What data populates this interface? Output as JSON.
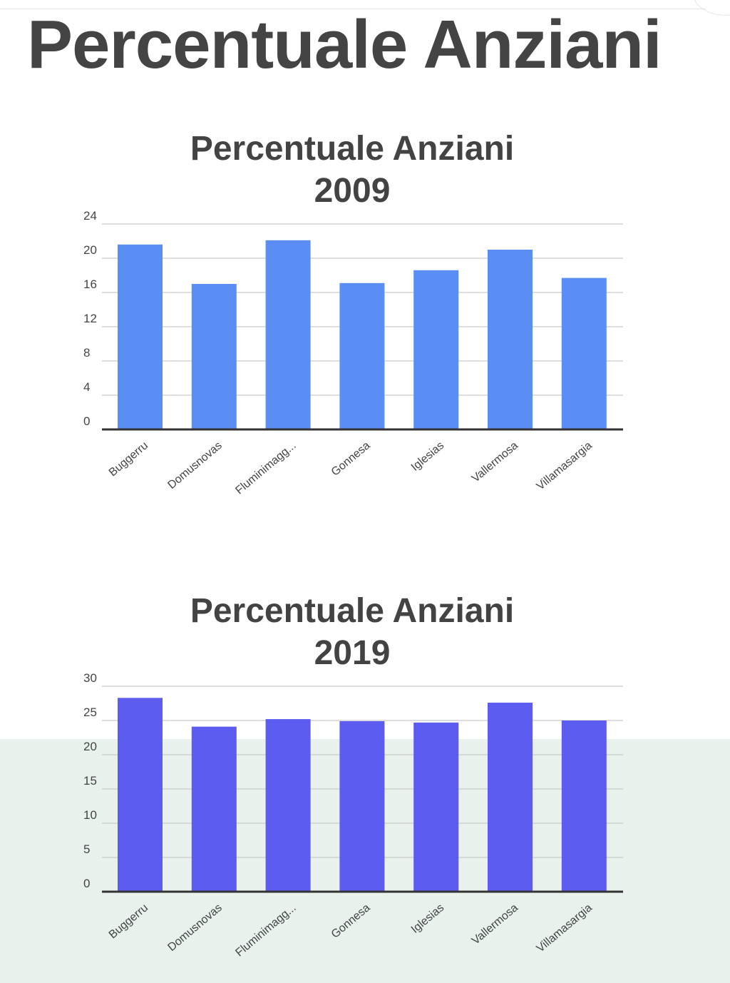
{
  "page": {
    "title": "Percentuale Anziani"
  },
  "chart_data": [
    {
      "type": "bar",
      "title_lines": [
        "Percentuale Anziani",
        "2009"
      ],
      "categories": [
        "Buggerru",
        "Domusnovas",
        "Fluminimagg...",
        "Gonnesa",
        "Iglesias",
        "Vallermosa",
        "Villamasargia"
      ],
      "values": [
        21.6,
        17.0,
        22.1,
        17.1,
        18.6,
        21.0,
        17.7
      ],
      "ylim": [
        0,
        24
      ],
      "yticks": [
        0,
        4,
        8,
        12,
        16,
        20,
        24
      ],
      "bar_color": "#5b8ef5",
      "grid": true,
      "legend": "none"
    },
    {
      "type": "bar",
      "title_lines": [
        "Percentuale Anziani",
        "2019"
      ],
      "categories": [
        "Buggerru",
        "Domusnovas",
        "Fluminimagg...",
        "Gonnesa",
        "Iglesias",
        "Vallermosa",
        "Villamasargia"
      ],
      "values": [
        28.3,
        24.1,
        25.2,
        24.9,
        24.7,
        27.6,
        25.0
      ],
      "ylim": [
        0,
        30
      ],
      "yticks": [
        0,
        5,
        10,
        15,
        20,
        25,
        30
      ],
      "bar_color": "#5c5cf0",
      "grid": true,
      "legend": "none"
    }
  ]
}
